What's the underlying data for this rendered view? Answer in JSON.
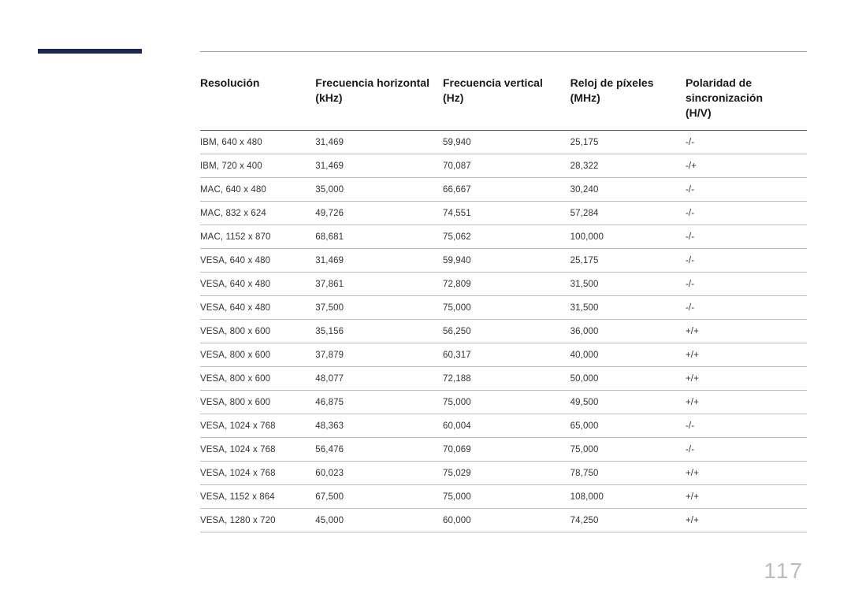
{
  "page_number": "117",
  "accent_color": "#1a2850",
  "rule_color": "#bdbdbd",
  "header_rule_color": "#555555",
  "columns": [
    {
      "line1": "Resolución",
      "line2": ""
    },
    {
      "line1": "Frecuencia horizontal",
      "line2": "(kHz)"
    },
    {
      "line1": "Frecuencia vertical",
      "line2": "(Hz)"
    },
    {
      "line1": "Reloj de píxeles",
      "line2": "(MHz)"
    },
    {
      "line1": "Polaridad de",
      "line2": "sincronización",
      "line3": "(H/V)"
    }
  ],
  "rows": [
    [
      "IBM, 640 x 480",
      "31,469",
      "59,940",
      "25,175",
      "-/-"
    ],
    [
      "IBM, 720 x 400",
      "31,469",
      "70,087",
      "28,322",
      "-/+"
    ],
    [
      "MAC, 640 x 480",
      "35,000",
      "66,667",
      "30,240",
      "-/-"
    ],
    [
      "MAC, 832 x 624",
      "49,726",
      "74,551",
      "57,284",
      "-/-"
    ],
    [
      "MAC, 1152 x 870",
      "68,681",
      "75,062",
      "100,000",
      "-/-"
    ],
    [
      "VESA, 640 x 480",
      "31,469",
      "59,940",
      "25,175",
      "-/-"
    ],
    [
      "VESA, 640 x 480",
      "37,861",
      "72,809",
      "31,500",
      "-/-"
    ],
    [
      "VESA, 640 x 480",
      "37,500",
      "75,000",
      "31,500",
      "-/-"
    ],
    [
      "VESA, 800 x 600",
      "35,156",
      "56,250",
      "36,000",
      "+/+"
    ],
    [
      "VESA, 800 x 600",
      "37,879",
      "60,317",
      "40,000",
      "+/+"
    ],
    [
      "VESA, 800 x 600",
      "48,077",
      "72,188",
      "50,000",
      "+/+"
    ],
    [
      "VESA, 800 x 600",
      "46,875",
      "75,000",
      "49,500",
      "+/+"
    ],
    [
      "VESA, 1024 x 768",
      "48,363",
      "60,004",
      "65,000",
      "-/-"
    ],
    [
      "VESA, 1024 x 768",
      "56,476",
      "70,069",
      "75,000",
      "-/-"
    ],
    [
      "VESA, 1024 x 768",
      "60,023",
      "75,029",
      "78,750",
      "+/+"
    ],
    [
      "VESA, 1152 x 864",
      "67,500",
      "75,000",
      "108,000",
      "+/+"
    ],
    [
      "VESA, 1280 x 720",
      "45,000",
      "60,000",
      "74,250",
      "+/+"
    ]
  ]
}
